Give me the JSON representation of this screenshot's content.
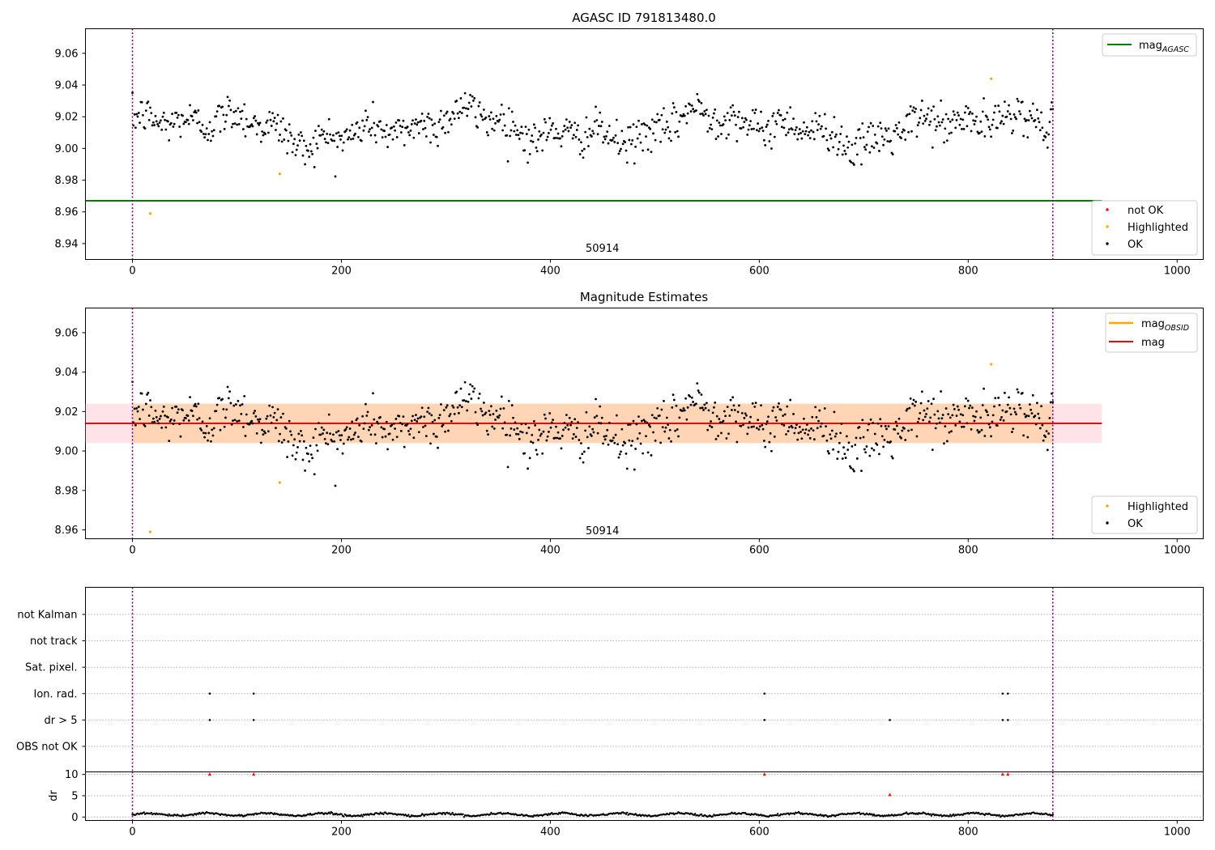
{
  "chart_data": [
    {
      "type": "scatter",
      "title": "AGASC ID 791813480.0",
      "xlabel": "",
      "ylabel": "",
      "xlim": [
        -45,
        1025
      ],
      "ylim": [
        8.93,
        9.0755
      ],
      "xticks": [
        0,
        200,
        400,
        600,
        800,
        1000
      ],
      "yticks": [
        8.94,
        8.96,
        8.98,
        9.0,
        9.02,
        9.04,
        9.06
      ],
      "ytick_labels": [
        "8.94",
        "8.96",
        "8.98",
        "9.00",
        "9.02",
        "9.04",
        "9.06"
      ],
      "annotations": [
        {
          "text": "50914",
          "x": 440,
          "y": 8.937
        }
      ],
      "vlines": [
        0,
        881
      ],
      "lines": [
        {
          "name": "mag_AGASC",
          "label_main": "mag",
          "label_sub": "AGASC",
          "color": "#008000",
          "x": [
            -45,
            928
          ],
          "y": [
            8.967,
            8.967
          ]
        }
      ],
      "legends": [
        {
          "position": "upper-right",
          "entries": [
            {
              "kind": "line",
              "label_main": "mag",
              "label_sub": "AGASC",
              "color": "#008000"
            }
          ]
        },
        {
          "position": "lower-right",
          "entries": [
            {
              "kind": "dot",
              "label": "not OK",
              "color": "#ff0000"
            },
            {
              "kind": "dot",
              "label": "Highlighted",
              "color": "#ffa500"
            },
            {
              "kind": "dot",
              "label": "OK",
              "color": "#000000"
            }
          ]
        }
      ],
      "series": [
        {
          "name": "OK",
          "color": "#000000",
          "n": 881,
          "x_start": 0,
          "x_end": 881,
          "y_mean": 9.013,
          "y_spread": 0.011
        },
        {
          "name": "Highlighted",
          "color": "#ffa500",
          "x": [
            17,
            141,
            822
          ],
          "y": [
            8.959,
            8.984,
            9.044
          ]
        }
      ]
    },
    {
      "type": "scatter",
      "title": "Magnitude Estimates",
      "xlabel": "",
      "ylabel": "",
      "xlim": [
        -45,
        1025
      ],
      "ylim": [
        8.9555,
        9.0725
      ],
      "xticks": [
        0,
        200,
        400,
        600,
        800,
        1000
      ],
      "yticks": [
        8.96,
        8.98,
        9.0,
        9.02,
        9.04,
        9.06
      ],
      "ytick_labels": [
        "8.96",
        "8.98",
        "9.00",
        "9.02",
        "9.04",
        "9.06"
      ],
      "annotations": [
        {
          "text": "50914",
          "x": 440,
          "y": 8.9595
        }
      ],
      "vlines": [
        0,
        881
      ],
      "bands": [
        {
          "x": [
            -45,
            928
          ],
          "y": [
            9.004,
            9.024
          ],
          "color": "#ffc0cb",
          "opacity": 0.45
        },
        {
          "x": [
            0,
            881
          ],
          "y": [
            9.004,
            9.024
          ],
          "color": "#ffa500",
          "opacity": 0.22
        }
      ],
      "lines": [
        {
          "name": "mag",
          "color": "#ff0000",
          "x": [
            -45,
            928
          ],
          "y": [
            9.014,
            9.014
          ]
        }
      ],
      "legends": [
        {
          "position": "upper-right",
          "entries": [
            {
              "kind": "line",
              "label_main": "mag",
              "label_sub": "OBSID",
              "color": "#ffa500"
            },
            {
              "kind": "line",
              "label_main": "mag",
              "label_sub": "",
              "color": "#ff0000"
            }
          ]
        },
        {
          "position": "lower-right",
          "entries": [
            {
              "kind": "dot",
              "label": "Highlighted",
              "color": "#ffa500"
            },
            {
              "kind": "dot",
              "label": "OK",
              "color": "#000000"
            }
          ]
        }
      ],
      "series": [
        {
          "name": "OK",
          "color": "#000000",
          "n": 881,
          "x_start": 0,
          "x_end": 881,
          "y_mean": 9.013,
          "y_spread": 0.011
        },
        {
          "name": "Highlighted",
          "color": "#ffa500",
          "x": [
            17,
            141,
            822
          ],
          "y": [
            8.959,
            8.984,
            9.044
          ]
        }
      ]
    },
    {
      "type": "scatter",
      "title": "",
      "xlabel": "",
      "ylabel": "",
      "xlim": [
        -45,
        1025
      ],
      "flag_rows": [
        "not Kalman",
        "not track",
        "Sat. pixel.",
        "Ion. rad.",
        "dr > 5",
        "OBS not OK"
      ],
      "flags": [
        {
          "row": "Ion. rad.",
          "x": [
            74,
            116,
            605,
            833,
            838
          ]
        },
        {
          "row": "dr > 5",
          "x": [
            74,
            116,
            605,
            725,
            833,
            838
          ]
        }
      ],
      "vlines": [
        0,
        881
      ]
    },
    {
      "type": "scatter",
      "title": "",
      "xlabel": "",
      "ylabel": "dr",
      "xlim": [
        -45,
        1025
      ],
      "ylim": [
        -0.8,
        10.6
      ],
      "xticks": [
        0,
        200,
        400,
        600,
        800,
        1000
      ],
      "yticks": [
        0,
        5,
        10
      ],
      "ytick_labels": [
        "0",
        "5",
        "10"
      ],
      "vlines": [
        0,
        881
      ],
      "series": [
        {
          "name": "dr",
          "color": "#000000",
          "n": 881,
          "x_start": 0,
          "x_end": 881,
          "y_mean": 0.6,
          "y_spread": 0.25
        },
        {
          "name": "dr > 5",
          "color": "#ff0000",
          "x": [
            74,
            116,
            605,
            725,
            833,
            838
          ],
          "y": [
            10,
            10,
            10,
            5.2,
            10,
            10
          ]
        }
      ]
    }
  ]
}
